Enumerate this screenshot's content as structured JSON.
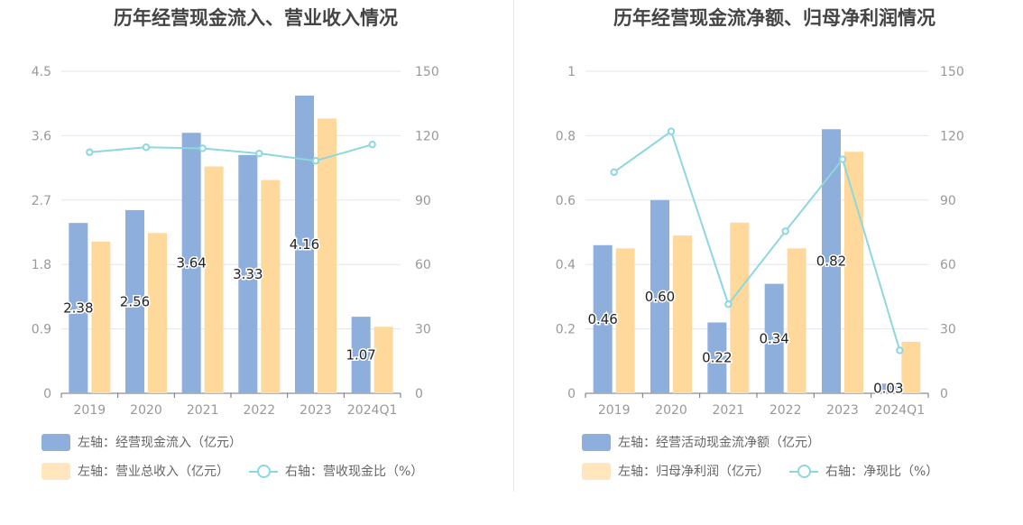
{
  "colors": {
    "bar1": "#8eaedc",
    "bar2": "#ffd99b",
    "line": "#8dd7df",
    "grid": "#e3e6ee",
    "axis": "#999999",
    "label": "#222222"
  },
  "chart_data": [
    {
      "type": "bar",
      "title": "历年经营现金流入、营业收入情况",
      "categories": [
        "2019",
        "2020",
        "2021",
        "2022",
        "2023",
        "2024Q1"
      ],
      "y_left": {
        "ticks": [
          "0",
          "0.9",
          "1.8",
          "2.7",
          "3.6",
          "4.5"
        ],
        "ylim": [
          0,
          4.5
        ]
      },
      "y_right": {
        "ticks": [
          "0",
          "30",
          "60",
          "90",
          "120",
          "150"
        ],
        "ylim": [
          0,
          150
        ]
      },
      "series": [
        {
          "name": "左轴：经营现金流入（亿元）",
          "kind": "bar",
          "axis": "left",
          "values": [
            2.38,
            2.56,
            3.64,
            3.33,
            4.16,
            1.07
          ],
          "labels": [
            "2.38",
            "2.56",
            "3.64",
            "3.33",
            "4.16",
            "1.07"
          ]
        },
        {
          "name": "左轴：营业总收入（亿元）",
          "kind": "bar",
          "axis": "left",
          "values": [
            2.12,
            2.24,
            3.17,
            2.98,
            3.84,
            0.93
          ]
        },
        {
          "name": "右轴：营收现金比（%）",
          "kind": "line",
          "axis": "right",
          "values": [
            112.3,
            114.6,
            114.1,
            111.7,
            108.3,
            115.9
          ]
        }
      ],
      "legend": "bottom"
    },
    {
      "type": "bar",
      "title": "历年经营现金流净额、归母净利润情况",
      "categories": [
        "2019",
        "2020",
        "2021",
        "2022",
        "2023",
        "2024Q1"
      ],
      "y_left": {
        "ticks": [
          "0",
          "0.2",
          "0.4",
          "0.6",
          "0.8",
          "1"
        ],
        "ylim": [
          0,
          1
        ]
      },
      "y_right": {
        "ticks": [
          "0",
          "30",
          "60",
          "90",
          "120",
          "150"
        ],
        "ylim": [
          0,
          150
        ]
      },
      "series": [
        {
          "name": "左轴：经营活动现金流净额（亿元）",
          "kind": "bar",
          "axis": "left",
          "values": [
            0.46,
            0.6,
            0.22,
            0.34,
            0.82,
            0.03
          ],
          "labels": [
            "0.46",
            "0.60",
            "0.22",
            "0.34",
            "0.82",
            "0.03"
          ]
        },
        {
          "name": "左轴：归母净利润（亿元）",
          "kind": "bar",
          "axis": "left",
          "values": [
            0.45,
            0.49,
            0.53,
            0.45,
            0.75,
            0.16
          ]
        },
        {
          "name": "右轴：净现比（%）",
          "kind": "line",
          "axis": "right",
          "values": [
            103,
            122,
            41.5,
            75.5,
            109,
            20
          ]
        }
      ],
      "legend": "bottom"
    }
  ]
}
